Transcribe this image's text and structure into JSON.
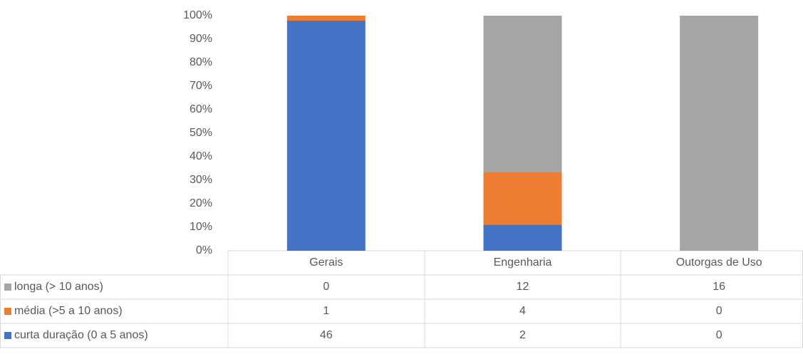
{
  "chart_data": {
    "type": "bar",
    "stacked": "percent",
    "categories": [
      "Gerais",
      "Engenharia",
      "Outorgas de Uso"
    ],
    "series": [
      {
        "name": "longa (> 10 anos)",
        "color": "#a5a5a5",
        "values": [
          0,
          12,
          16
        ]
      },
      {
        "name": "média (>5 a 10 anos)",
        "color": "#ed7d31",
        "values": [
          1,
          4,
          0
        ]
      },
      {
        "name": "curta duração (0 a 5 anos)",
        "color": "#4472c4",
        "values": [
          46,
          2,
          0
        ]
      }
    ],
    "ylim": [
      0,
      100
    ],
    "yticks": [
      {
        "value": 0,
        "label": "0%"
      },
      {
        "value": 10,
        "label": "10%"
      },
      {
        "value": 20,
        "label": "20%"
      },
      {
        "value": 30,
        "label": "30%"
      },
      {
        "value": 40,
        "label": "40%"
      },
      {
        "value": 50,
        "label": "50%"
      },
      {
        "value": 60,
        "label": "60%"
      },
      {
        "value": 70,
        "label": "70%"
      },
      {
        "value": 80,
        "label": "80%"
      },
      {
        "value": 90,
        "label": "90%"
      },
      {
        "value": 100,
        "label": "100%"
      }
    ],
    "grid": false,
    "data_table": true
  }
}
